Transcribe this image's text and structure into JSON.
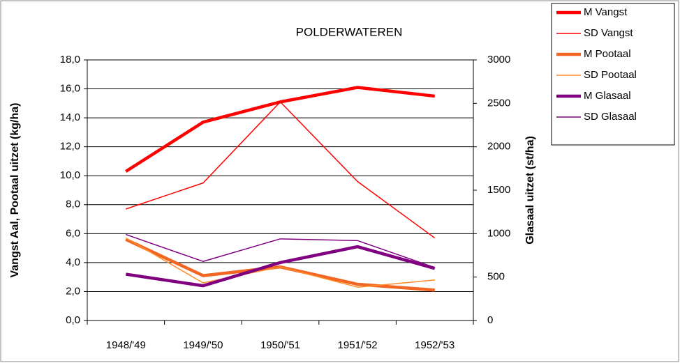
{
  "chart_data": {
    "type": "line",
    "title": "POLDERWATEREN",
    "y_label": "Vangst Aal, Pootaal uitzet  (kg/ha)",
    "y2_label": "Glasaal uitzet  (st/ha)",
    "categories": [
      "1948/'49",
      "1949/'50",
      "1950/'51",
      "1951/'52",
      "1952/'53"
    ],
    "series": [
      {
        "name": "M Vangst",
        "color": "#ff0000",
        "line_width": 4.5,
        "values": [
          10.3,
          13.7,
          15.1,
          16.1,
          15.5
        ]
      },
      {
        "name": "SD Vangst",
        "color": "#ff0000",
        "line_width": 1.5,
        "values": [
          7.7,
          9.5,
          15.1,
          9.6,
          5.7
        ]
      },
      {
        "name": "M Pootaal",
        "color": "#f26522",
        "line_width": 4.5,
        "values": [
          5.6,
          3.1,
          3.7,
          2.5,
          2.1
        ]
      },
      {
        "name": "SD Pootaal",
        "color": "#ff8c28",
        "line_width": 1.5,
        "values": [
          5.7,
          2.6,
          3.7,
          2.3,
          2.8
        ]
      },
      {
        "name": "M Glasaal",
        "color": "#800080",
        "line_width": 4.5,
        "axis": "y2",
        "values": [
          533,
          400,
          667,
          850,
          600
        ]
      },
      {
        "name": "SD Glasaal",
        "color": "#800080",
        "line_width": 1.5,
        "axis": "y2",
        "values": [
          990,
          680,
          940,
          920,
          610
        ]
      }
    ],
    "ylim": [
      0,
      18
    ],
    "yticks": [
      {
        "value": 0,
        "label": "0,0"
      },
      {
        "value": 2,
        "label": "2,0"
      },
      {
        "value": 4,
        "label": "4,0"
      },
      {
        "value": 6,
        "label": "6,0"
      },
      {
        "value": 8,
        "label": "8,0"
      },
      {
        "value": 10,
        "label": "10,0"
      },
      {
        "value": 12,
        "label": "12,0"
      },
      {
        "value": 14,
        "label": "14,0"
      },
      {
        "value": 16,
        "label": "16,0"
      },
      {
        "value": 18,
        "label": "18,0"
      }
    ],
    "y2lim": [
      0,
      3000
    ],
    "y2ticks": [
      0,
      500,
      1000,
      1500,
      2000,
      2500,
      3000
    ],
    "grid": true,
    "legend": "top-right"
  }
}
